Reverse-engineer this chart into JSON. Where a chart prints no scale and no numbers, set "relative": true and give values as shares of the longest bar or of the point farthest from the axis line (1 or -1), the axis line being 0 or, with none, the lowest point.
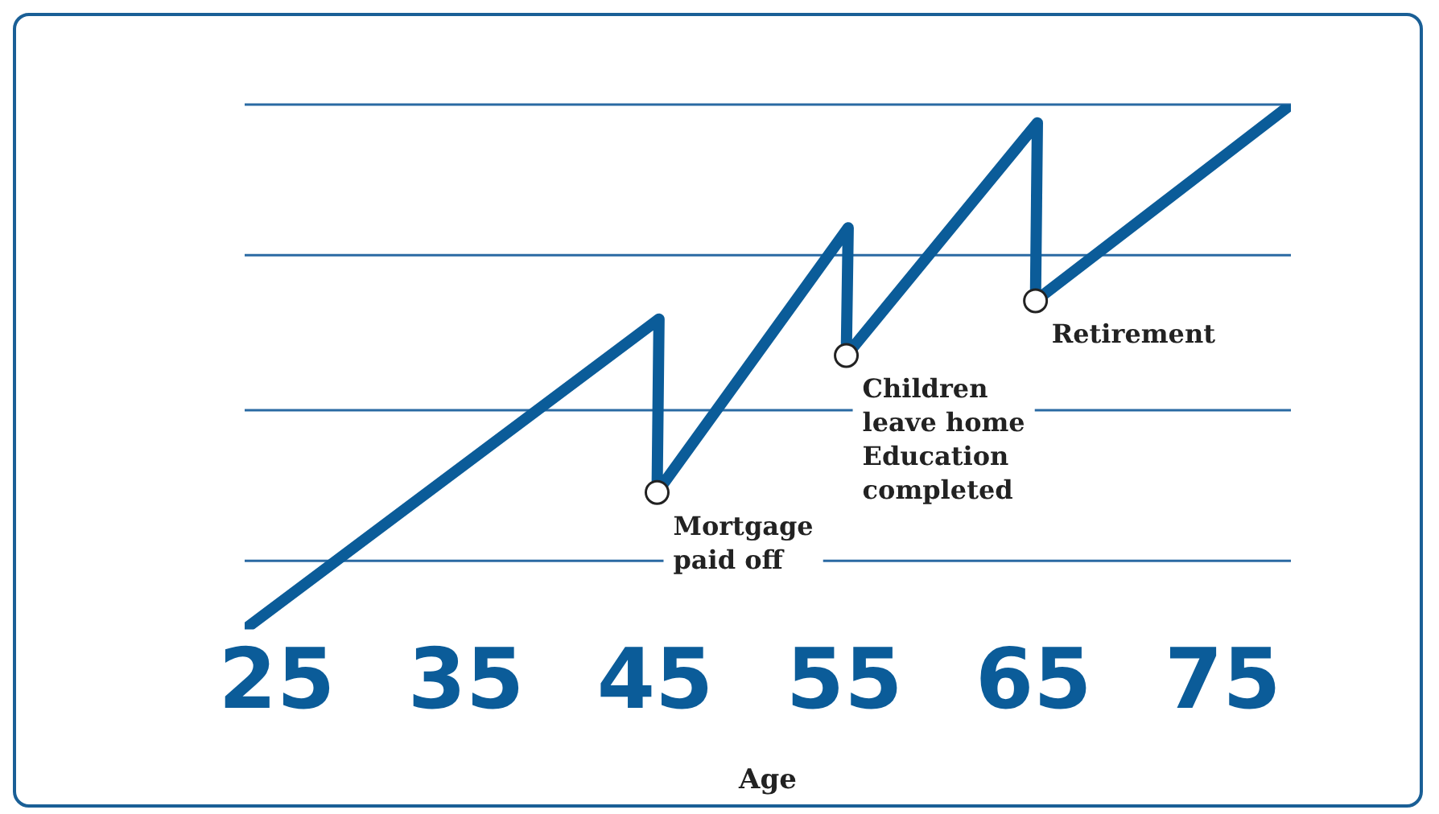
{
  "chart_data": {
    "type": "line",
    "relative": true,
    "xlabel": "Age",
    "xlim": [
      23.3,
      78.6
    ],
    "xticks": [
      25,
      35,
      45,
      55,
      65,
      75
    ],
    "legend": false,
    "ref_lines": [
      {
        "axis": "y",
        "value": 0,
        "color": "#2a6aa3"
      },
      {
        "axis": "y",
        "value": 0.33,
        "color": "#2a6aa3"
      },
      {
        "axis": "y",
        "value": 0.67,
        "color": "#2a6aa3"
      },
      {
        "axis": "y",
        "value": 1,
        "color": "#2a6aa3"
      }
    ],
    "series": [
      {
        "color": "#0b5c99",
        "x": [
          23.3,
          45.2,
          45.1,
          55.2,
          55.1,
          65.2,
          65.1,
          78.6
        ],
        "values": [
          -0.15,
          0.53,
          0.15,
          0.73,
          0.45,
          0.96,
          0.57,
          1
        ]
      }
    ],
    "annotations": [
      {
        "text": "Mortgage\npaid off",
        "x": 45.1,
        "y": 0.15
      },
      {
        "text": "Children\nleave home\nEducation\ncompleted",
        "x": 55.1,
        "y": 0.45
      },
      {
        "text": "Retirement",
        "x": 65.1,
        "y": 0.57
      }
    ]
  }
}
